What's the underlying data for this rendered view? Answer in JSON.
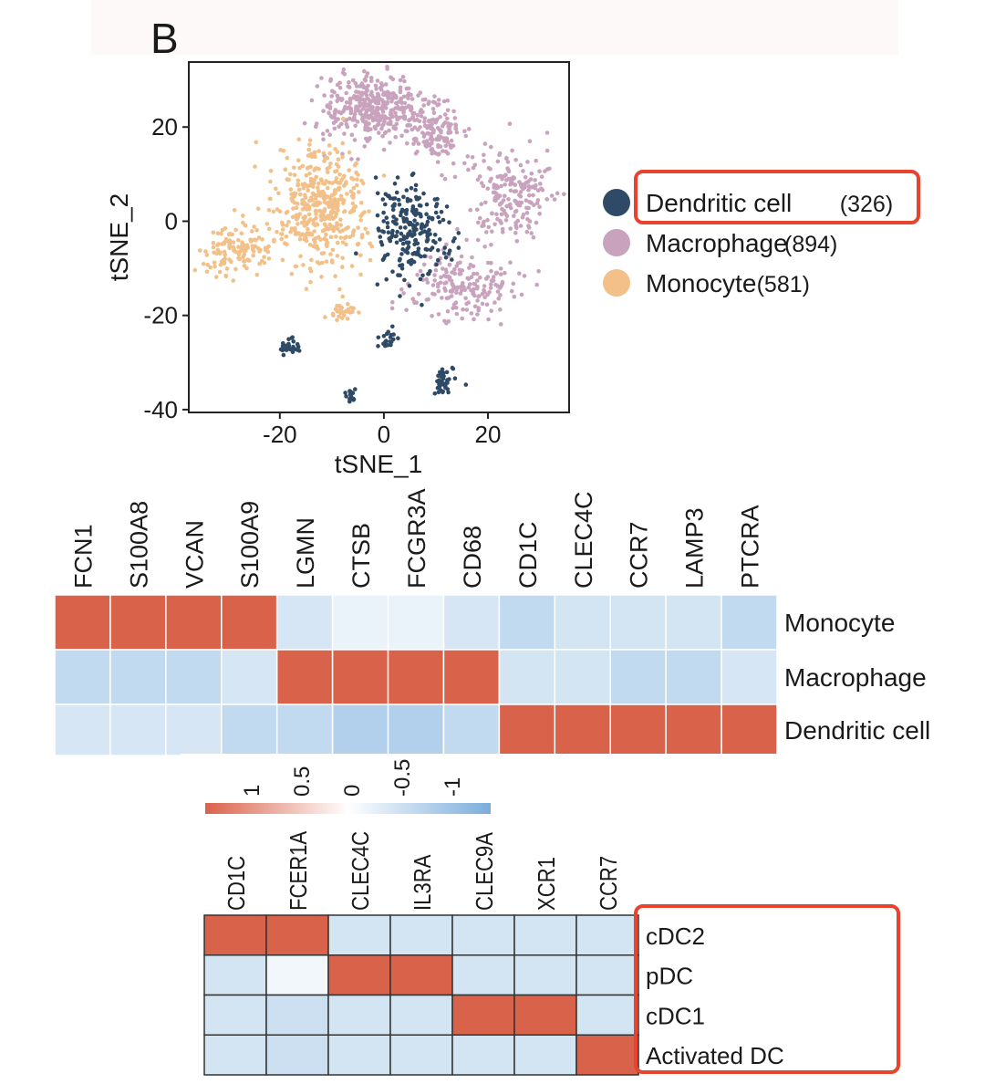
{
  "panel_label": "B",
  "colors": {
    "Dendritic cell": "#2f4a66",
    "Macrophage": "#c9a3bd",
    "Monocyte": "#f2c088",
    "high": "#d9634a",
    "mid": "#ffffff",
    "low": "#7aaddc",
    "highlight": "#e8432e"
  },
  "chart_data": [
    {
      "type": "scatter",
      "xlabel": "tSNE_1",
      "ylabel": "tSNE_2",
      "xlim": [
        -37.5,
        35.6
      ],
      "ylim": [
        -40.6,
        33.8
      ],
      "xticks": [
        -20,
        0,
        20
      ],
      "yticks": [
        20,
        0,
        -20,
        -40
      ],
      "grid": false,
      "legend_position": "right",
      "series": [
        {
          "name": "Dendritic cell",
          "count_label": "(326)",
          "clusters": [
            {
              "cx": 5,
              "cy": -2,
              "sx": 3.5,
              "sy": 5,
              "n": 220
            },
            {
              "cx": -18,
              "cy": -27,
              "sx": 0.8,
              "sy": 0.8,
              "n": 30
            },
            {
              "cx": 0.5,
              "cy": -25,
              "sx": 0.9,
              "sy": 0.8,
              "n": 20
            },
            {
              "cx": 11.5,
              "cy": -34,
              "sx": 1.2,
              "sy": 1.2,
              "n": 40
            },
            {
              "cx": -6,
              "cy": -37,
              "sx": 0.6,
              "sy": 0.5,
              "n": 16
            }
          ]
        },
        {
          "name": "Macrophage",
          "count_label": "(894)",
          "clusters": [
            {
              "cx": -2,
              "cy": 24,
              "sx": 5,
              "sy": 3.5,
              "n": 380
            },
            {
              "cx": 10,
              "cy": 19,
              "sx": 2.5,
              "sy": 3,
              "n": 130
            },
            {
              "cx": 24,
              "cy": 6,
              "sx": 4,
              "sy": 5,
              "n": 200
            },
            {
              "cx": 15,
              "cy": -14,
              "sx": 5,
              "sy": 4,
              "n": 184
            }
          ]
        },
        {
          "name": "Monocyte",
          "count_label": "(581)",
          "clusters": [
            {
              "cx": -12,
              "cy": 3,
              "sx": 4.5,
              "sy": 6,
              "n": 420
            },
            {
              "cx": -28,
              "cy": -6,
              "sx": 4,
              "sy": 2.5,
              "n": 130
            },
            {
              "cx": -8,
              "cy": -19,
              "sx": 1.2,
              "sy": 1,
              "n": 31
            }
          ]
        }
      ]
    },
    {
      "type": "heatmap",
      "columns": [
        "FCN1",
        "S100A8",
        "VCAN",
        "S100A9",
        "LGMN",
        "CTSB",
        "FCGR3A",
        "CD68",
        "CD1C",
        "CLEC4C",
        "CCR7",
        "LAMP3",
        "PTCRA"
      ],
      "rows": [
        "Monocyte",
        "Macrophage",
        "Dendritic cell"
      ],
      "values": [
        [
          1,
          1,
          1,
          1,
          -0.3,
          -0.1,
          -0.1,
          -0.3,
          -0.6,
          -0.35,
          -0.35,
          -0.35,
          -0.6
        ],
        [
          -0.6,
          -0.6,
          -0.6,
          -0.3,
          1,
          1,
          1,
          1,
          -0.35,
          -0.35,
          -0.6,
          -0.6,
          -0.3
        ],
        [
          -0.3,
          -0.3,
          -0.3,
          -0.6,
          -0.6,
          -0.9,
          -0.9,
          -0.6,
          1,
          1,
          1,
          1,
          1
        ]
      ],
      "colorbar": {
        "ticks": [
          "1",
          "0.5",
          "0",
          "-0.5",
          "-1"
        ],
        "range": [
          1,
          -1
        ]
      }
    },
    {
      "type": "heatmap",
      "columns": [
        "CD1C",
        "FCER1A",
        "CLEC4C",
        "IL3RA",
        "CLEC9A",
        "XCR1",
        "CCR7"
      ],
      "rows": [
        "cDC2",
        "pDC",
        "cDC1",
        "Activated DC"
      ],
      "values": [
        [
          1,
          1,
          -0.35,
          -0.35,
          -0.35,
          -0.35,
          -0.35
        ],
        [
          -0.35,
          -0.05,
          1,
          1,
          -0.35,
          -0.35,
          -0.35
        ],
        [
          -0.35,
          -0.45,
          -0.35,
          -0.35,
          1,
          1,
          -0.35
        ],
        [
          -0.35,
          -0.45,
          -0.35,
          -0.35,
          -0.35,
          -0.35,
          1
        ]
      ]
    }
  ]
}
